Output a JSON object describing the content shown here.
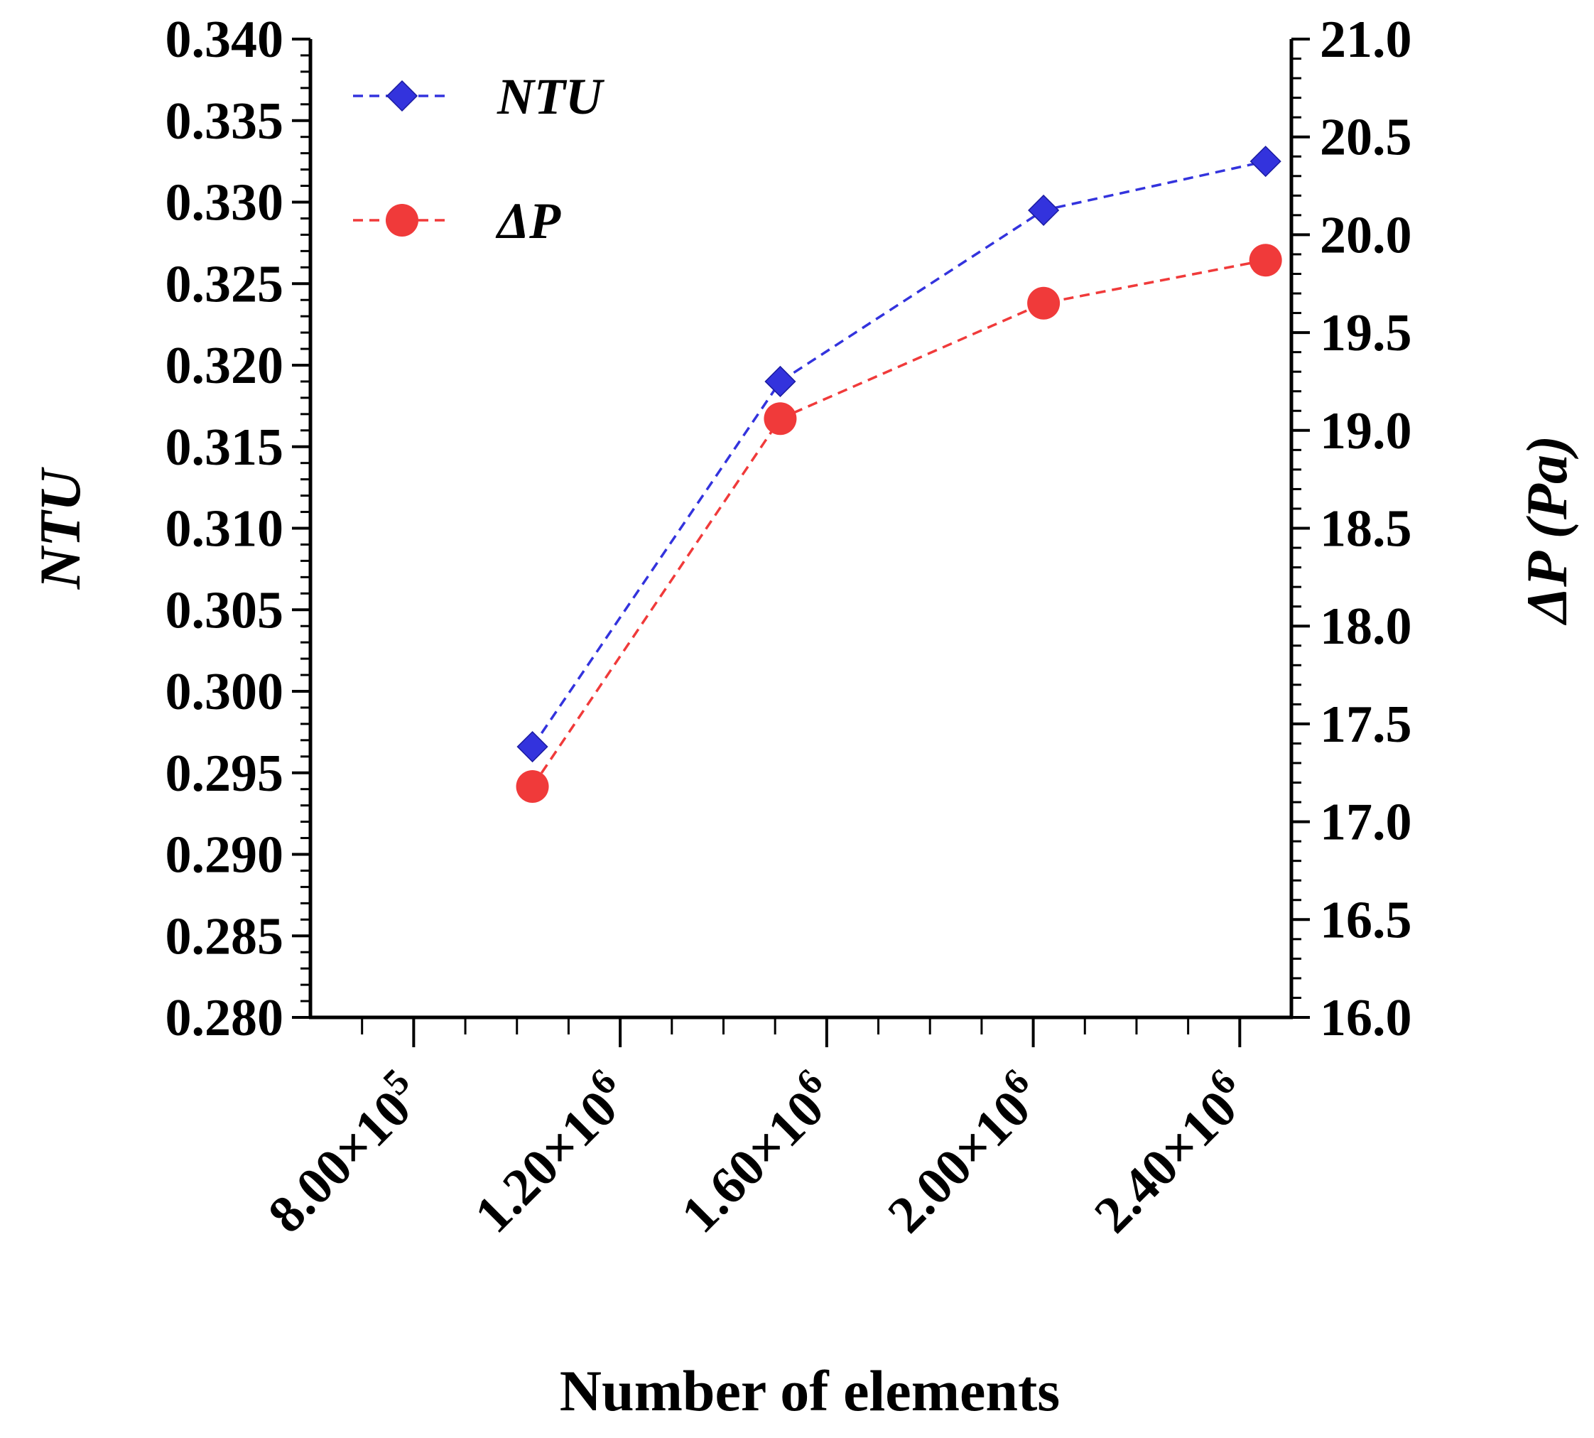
{
  "chart_data": {
    "type": "line",
    "title": "",
    "xlabel": "Number of elements",
    "ylabel_left": "NTU",
    "ylabel_right": "ΔP (Pa)",
    "xlim": [
      600000,
      2500000
    ],
    "ylim_left": [
      0.28,
      0.34
    ],
    "ylim_right": [
      16.0,
      21.0
    ],
    "grid": false,
    "legend_position": "top-left",
    "x_ticks": [
      {
        "value": 800000,
        "mantissa": "8.00×10",
        "exponent": "5"
      },
      {
        "value": 1200000,
        "mantissa": "1.20×10",
        "exponent": "6"
      },
      {
        "value": 1600000,
        "mantissa": "1.60×10",
        "exponent": "6"
      },
      {
        "value": 2000000,
        "mantissa": "2.00×10",
        "exponent": "6"
      },
      {
        "value": 2400000,
        "mantissa": "2.40×10",
        "exponent": "6"
      }
    ],
    "y_left_ticks": [
      "0.280",
      "0.285",
      "0.290",
      "0.295",
      "0.300",
      "0.305",
      "0.310",
      "0.315",
      "0.320",
      "0.325",
      "0.330",
      "0.335",
      "0.340"
    ],
    "y_right_ticks": [
      "16.0",
      "16.5",
      "17.0",
      "17.5",
      "18.0",
      "18.5",
      "19.0",
      "19.5",
      "20.0",
      "20.5",
      "21.0"
    ],
    "x": [
      1030000,
      1510000,
      2020000,
      2450000
    ],
    "series": [
      {
        "name": "NTU",
        "axis": "left",
        "color": "#3333dd",
        "marker": "diamond",
        "line_style": "dashed",
        "values": [
          0.2966,
          0.319,
          0.3295,
          0.3325
        ]
      },
      {
        "name": "ΔP",
        "axis": "right",
        "color": "#f03a3a",
        "marker": "circle",
        "line_style": "dashed",
        "values": [
          17.18,
          19.06,
          19.65,
          19.87
        ]
      }
    ]
  }
}
